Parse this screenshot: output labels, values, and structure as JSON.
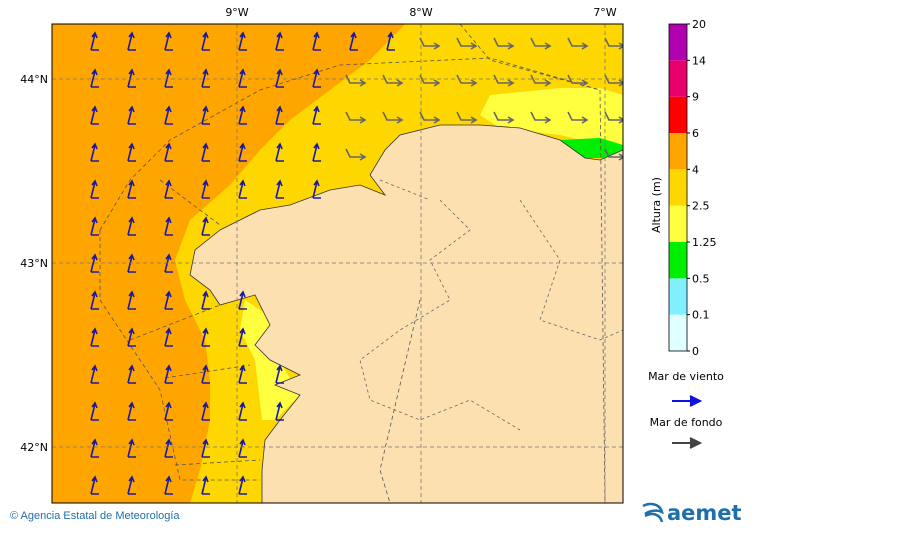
{
  "map": {
    "lon_labels": [
      "9°W",
      "8°W",
      "7°W"
    ],
    "lat_labels": [
      "44°N",
      "43°N",
      "42°N"
    ]
  },
  "legend": {
    "title": "Altura (m)",
    "levels": [
      0,
      0.1,
      0.5,
      1.25,
      2.5,
      4,
      6,
      9,
      14,
      20
    ],
    "colors": [
      "#e0ffff",
      "#80f0ff",
      "#00ee00",
      "#ffff40",
      "#ffd700",
      "#ffa500",
      "#ff0000",
      "#e8006c",
      "#b000b0"
    ],
    "wind_sea": "Mar de viento",
    "swell": "Mar de fondo"
  },
  "footer": {
    "copyright": "© Agencia Estatal de Meteorología",
    "logo": "aemet"
  }
}
